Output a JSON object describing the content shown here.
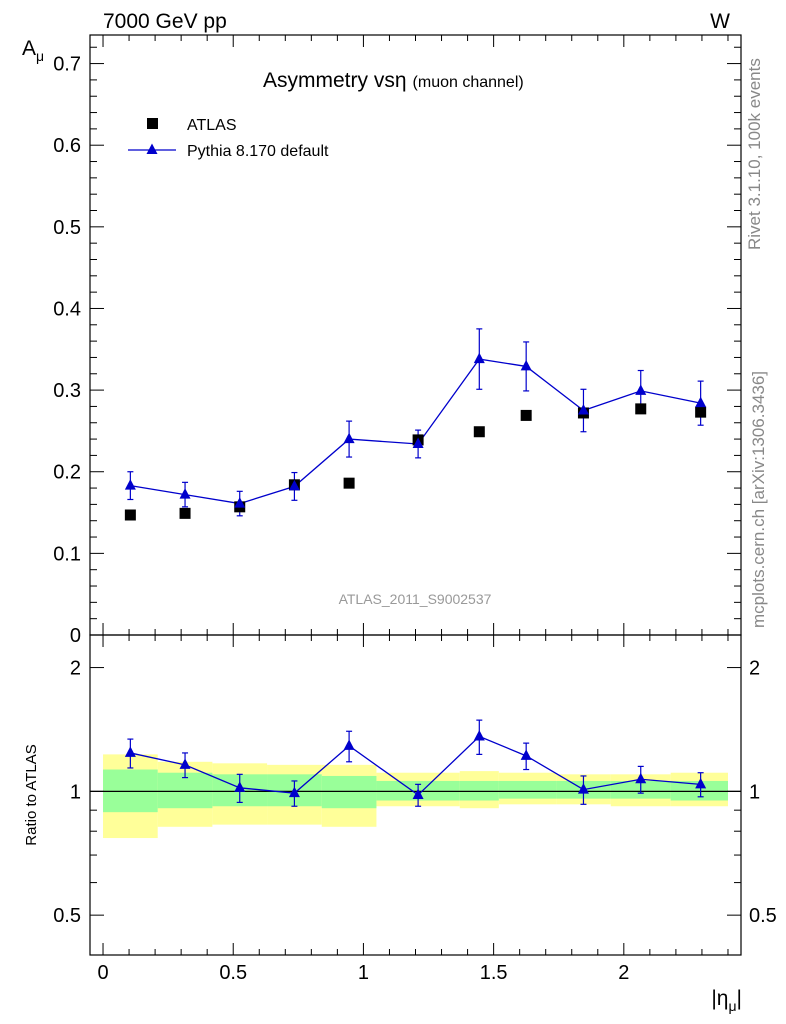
{
  "header": {
    "left": "7000 GeV pp",
    "right": "W"
  },
  "side_text": {
    "rivet": "Rivet 3.1.10,  100k events",
    "mcplots": "mcplots.cern.ch [arXiv:1306.3436]"
  },
  "colors": {
    "mc": "#0000cc",
    "data": "#000000",
    "band_inner": "#99ff99",
    "band_outer": "#ffff99"
  },
  "chart_data": [
    {
      "type": "scatter",
      "title": "Asymmetry vs",
      "title_symbol": "η",
      "title_sub": "(muon channel)",
      "ylabel": "A",
      "ylabel_sub": "μ",
      "analysis_label": "ATLAS_2011_S9002537",
      "xlim": [
        -0.05,
        2.45
      ],
      "ylim": [
        0,
        0.735
      ],
      "yticks": [
        0,
        0.1,
        0.2,
        0.3,
        0.4,
        0.5,
        0.6,
        0.7
      ],
      "ytick_labels": [
        "0",
        "0.1",
        "0.2",
        "0.3",
        "0.4",
        "0.5",
        "0.6",
        "0.7"
      ],
      "legend_position": "top-left",
      "series": [
        {
          "name": "ATLAS",
          "marker": "square",
          "x": [
            0.105,
            0.315,
            0.525,
            0.735,
            0.945,
            1.21,
            1.445,
            1.625,
            1.845,
            2.065,
            2.295
          ],
          "y": [
            0.147,
            0.149,
            0.157,
            0.184,
            0.186,
            0.239,
            0.249,
            0.269,
            0.272,
            0.277,
            0.273
          ]
        },
        {
          "name": "Pythia 8.170 default",
          "marker": "triangle",
          "x": [
            0.105,
            0.315,
            0.525,
            0.735,
            0.945,
            1.21,
            1.445,
            1.625,
            1.845,
            2.065,
            2.295
          ],
          "y": [
            0.183,
            0.172,
            0.161,
            0.182,
            0.24,
            0.234,
            0.338,
            0.329,
            0.275,
            0.299,
            0.284
          ],
          "err": [
            0.017,
            0.015,
            0.015,
            0.017,
            0.022,
            0.017,
            0.037,
            0.03,
            0.026,
            0.025,
            0.027
          ]
        }
      ]
    },
    {
      "type": "scatter",
      "ylabel": "Ratio to ATLAS",
      "xlabel": "|η",
      "xlabel_sub": "μ",
      "xlabel_close": "|",
      "ylim_log": [
        0.4,
        2.4
      ],
      "xticks": [
        0,
        0.5,
        1,
        1.5,
        2
      ],
      "xtick_labels": [
        "0",
        "0.5",
        "1",
        "1.5",
        "2"
      ],
      "yticks": [
        0.5,
        1,
        2
      ],
      "ytick_labels": [
        "0.5",
        "1",
        "2"
      ],
      "bins": [
        {
          "lo": 0.0,
          "hi": 0.21,
          "inner": [
            0.89,
            1.13
          ],
          "outer": [
            0.77,
            1.23
          ]
        },
        {
          "lo": 0.21,
          "hi": 0.42,
          "inner": [
            0.91,
            1.11
          ],
          "outer": [
            0.82,
            1.18
          ]
        },
        {
          "lo": 0.42,
          "hi": 0.63,
          "inner": [
            0.92,
            1.1
          ],
          "outer": [
            0.83,
            1.17
          ]
        },
        {
          "lo": 0.63,
          "hi": 0.84,
          "inner": [
            0.92,
            1.1
          ],
          "outer": [
            0.83,
            1.16
          ]
        },
        {
          "lo": 0.84,
          "hi": 1.05,
          "inner": [
            0.91,
            1.09
          ],
          "outer": [
            0.82,
            1.16
          ]
        },
        {
          "lo": 1.05,
          "hi": 1.37,
          "inner": [
            0.95,
            1.06
          ],
          "outer": [
            0.92,
            1.11
          ]
        },
        {
          "lo": 1.37,
          "hi": 1.52,
          "inner": [
            0.95,
            1.06
          ],
          "outer": [
            0.91,
            1.12
          ]
        },
        {
          "lo": 1.52,
          "hi": 1.74,
          "inner": [
            0.96,
            1.06
          ],
          "outer": [
            0.93,
            1.11
          ]
        },
        {
          "lo": 1.74,
          "hi": 1.95,
          "inner": [
            0.96,
            1.06
          ],
          "outer": [
            0.93,
            1.1
          ]
        },
        {
          "lo": 1.95,
          "hi": 2.18,
          "inner": [
            0.96,
            1.06
          ],
          "outer": [
            0.92,
            1.1
          ]
        },
        {
          "lo": 2.18,
          "hi": 2.4,
          "inner": [
            0.95,
            1.06
          ],
          "outer": [
            0.92,
            1.11
          ]
        }
      ],
      "series": [
        {
          "name": "Pythia 8.170 default",
          "marker": "triangle",
          "x": [
            0.105,
            0.315,
            0.525,
            0.735,
            0.945,
            1.21,
            1.445,
            1.625,
            1.845,
            2.065,
            2.295
          ],
          "y": [
            1.24,
            1.16,
            1.02,
            0.99,
            1.29,
            0.98,
            1.36,
            1.22,
            1.01,
            1.07,
            1.04
          ],
          "err": [
            0.1,
            0.08,
            0.08,
            0.07,
            0.11,
            0.06,
            0.13,
            0.09,
            0.08,
            0.08,
            0.07
          ]
        }
      ]
    }
  ]
}
